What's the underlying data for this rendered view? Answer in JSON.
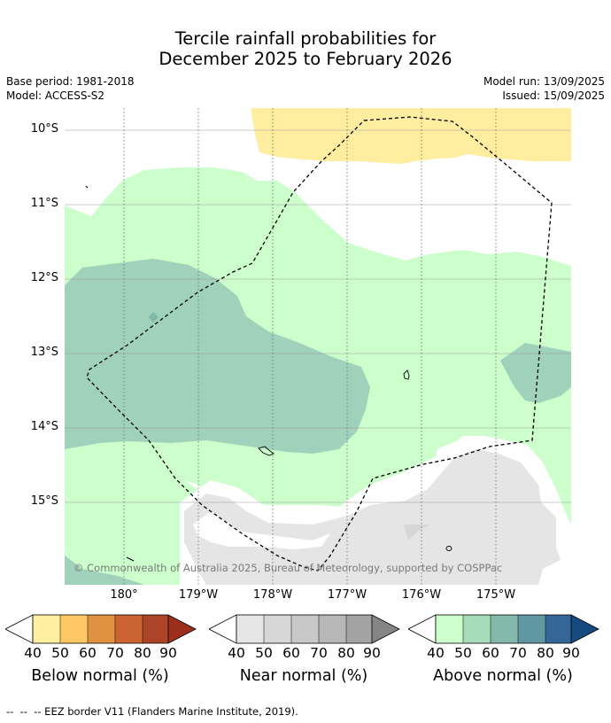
{
  "title": {
    "line1": "Tercile rainfall probabilities for",
    "line2": "December 2025 to February 2026"
  },
  "meta": {
    "base_period": "Base period: 1981-2018",
    "model": "Model: ACCESS-S2",
    "model_run": "Model run: 13/09/2025",
    "issued": "Issued: 15/09/2025"
  },
  "map": {
    "lat_labels": [
      "10°S",
      "11°S",
      "12°S",
      "13°S",
      "14°S",
      "15°S"
    ],
    "lon_labels": [
      "180°",
      "179°W",
      "178°W",
      "177°W",
      "176°W",
      "175°W"
    ],
    "copyright": "© Commonwealth of Australia 2025, Bureau of Meteorology, supported by COSPPac",
    "colors": {
      "below_40": "#ffeda0",
      "above_40": "#ccffcc",
      "above_50": "#9fd1bb",
      "above_60": "#81b8aa",
      "near_40": "#e5e5e5",
      "near_50": "#d6d6d6"
    }
  },
  "colorbars": {
    "ticks": [
      "40",
      "50",
      "60",
      "70",
      "80",
      "90"
    ],
    "below": {
      "label": "Below normal (%)",
      "colors": [
        "#ffeda0",
        "#fec763",
        "#e09142",
        "#cc6333",
        "#ac4527",
        "#9b2f1c"
      ]
    },
    "near": {
      "label": "Near normal (%)",
      "colors": [
        "#e6e6e6",
        "#d7d7d7",
        "#c8c8c8",
        "#b7b7b7",
        "#a3a3a3",
        "#858585"
      ]
    },
    "above": {
      "label": "Above normal (%)",
      "colors": [
        "#ccffcc",
        "#a6dcba",
        "#83b9ab",
        "#5f97a3",
        "#346797",
        "#184a82"
      ]
    }
  },
  "footer": "--  --  -- EEZ border V11 (Flanders Marine Institute, 2019)."
}
